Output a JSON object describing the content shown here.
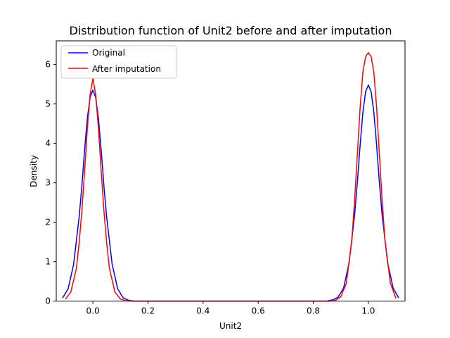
{
  "chart_data": {
    "type": "line",
    "title": "Distribution function of Unit2 before and after imputation",
    "xlabel": "Unit2",
    "ylabel": "Density",
    "xlim": [
      -0.133,
      1.133
    ],
    "ylim": [
      0,
      6.6
    ],
    "xticks": [
      0.0,
      0.2,
      0.4,
      0.6,
      0.8,
      1.0
    ],
    "xtick_labels": [
      "0.0",
      "0.2",
      "0.4",
      "0.6",
      "0.8",
      "1.0"
    ],
    "yticks": [
      0,
      1,
      2,
      3,
      4,
      5,
      6
    ],
    "ytick_labels": [
      "0",
      "1",
      "2",
      "3",
      "4",
      "5",
      "6"
    ],
    "grid": false,
    "legend_position": "upper-left",
    "series": [
      {
        "name": "Original",
        "color": "#0000ff",
        "x": [
          -0.11,
          -0.09,
          -0.07,
          -0.05,
          -0.04,
          -0.03,
          -0.02,
          -0.01,
          0.0,
          0.01,
          0.02,
          0.03,
          0.04,
          0.05,
          0.07,
          0.09,
          0.11,
          0.13,
          0.15,
          0.2,
          0.4,
          0.6,
          0.8,
          0.85,
          0.87,
          0.89,
          0.91,
          0.93,
          0.95,
          0.96,
          0.97,
          0.98,
          0.99,
          1.0,
          1.01,
          1.02,
          1.03,
          1.04,
          1.05,
          1.07,
          1.09,
          1.11
        ],
        "y": [
          0.08,
          0.31,
          0.93,
          2.13,
          2.92,
          3.84,
          4.65,
          5.17,
          5.35,
          5.17,
          4.65,
          3.84,
          2.92,
          2.13,
          0.93,
          0.31,
          0.08,
          0.02,
          0.0,
          0.0,
          0.0,
          0.0,
          0.0,
          0.0,
          0.03,
          0.1,
          0.33,
          0.97,
          2.18,
          3.0,
          3.95,
          4.78,
          5.31,
          5.48,
          5.31,
          4.78,
          3.95,
          3.0,
          2.18,
          0.97,
          0.33,
          0.08
        ]
      },
      {
        "name": "After imputation",
        "color": "#ff0000",
        "x": [
          -0.1,
          -0.08,
          -0.06,
          -0.05,
          -0.04,
          -0.03,
          -0.02,
          -0.01,
          0.0,
          0.01,
          0.02,
          0.03,
          0.04,
          0.05,
          0.06,
          0.08,
          0.1,
          0.12,
          0.15,
          0.2,
          0.4,
          0.6,
          0.8,
          0.86,
          0.88,
          0.9,
          0.92,
          0.94,
          0.95,
          0.96,
          0.97,
          0.98,
          0.99,
          1.0,
          1.01,
          1.02,
          1.03,
          1.04,
          1.05,
          1.06,
          1.08,
          1.1
        ],
        "y": [
          0.05,
          0.23,
          0.83,
          1.47,
          2.29,
          3.3,
          4.4,
          5.24,
          5.65,
          5.24,
          4.4,
          3.3,
          2.29,
          1.47,
          0.83,
          0.23,
          0.05,
          0.01,
          0.0,
          0.0,
          0.0,
          0.0,
          0.0,
          0.0,
          0.02,
          0.11,
          0.45,
          1.55,
          2.55,
          3.72,
          4.9,
          5.8,
          6.2,
          6.3,
          6.2,
          5.8,
          4.9,
          3.72,
          2.55,
          1.55,
          0.45,
          0.07
        ]
      }
    ]
  }
}
